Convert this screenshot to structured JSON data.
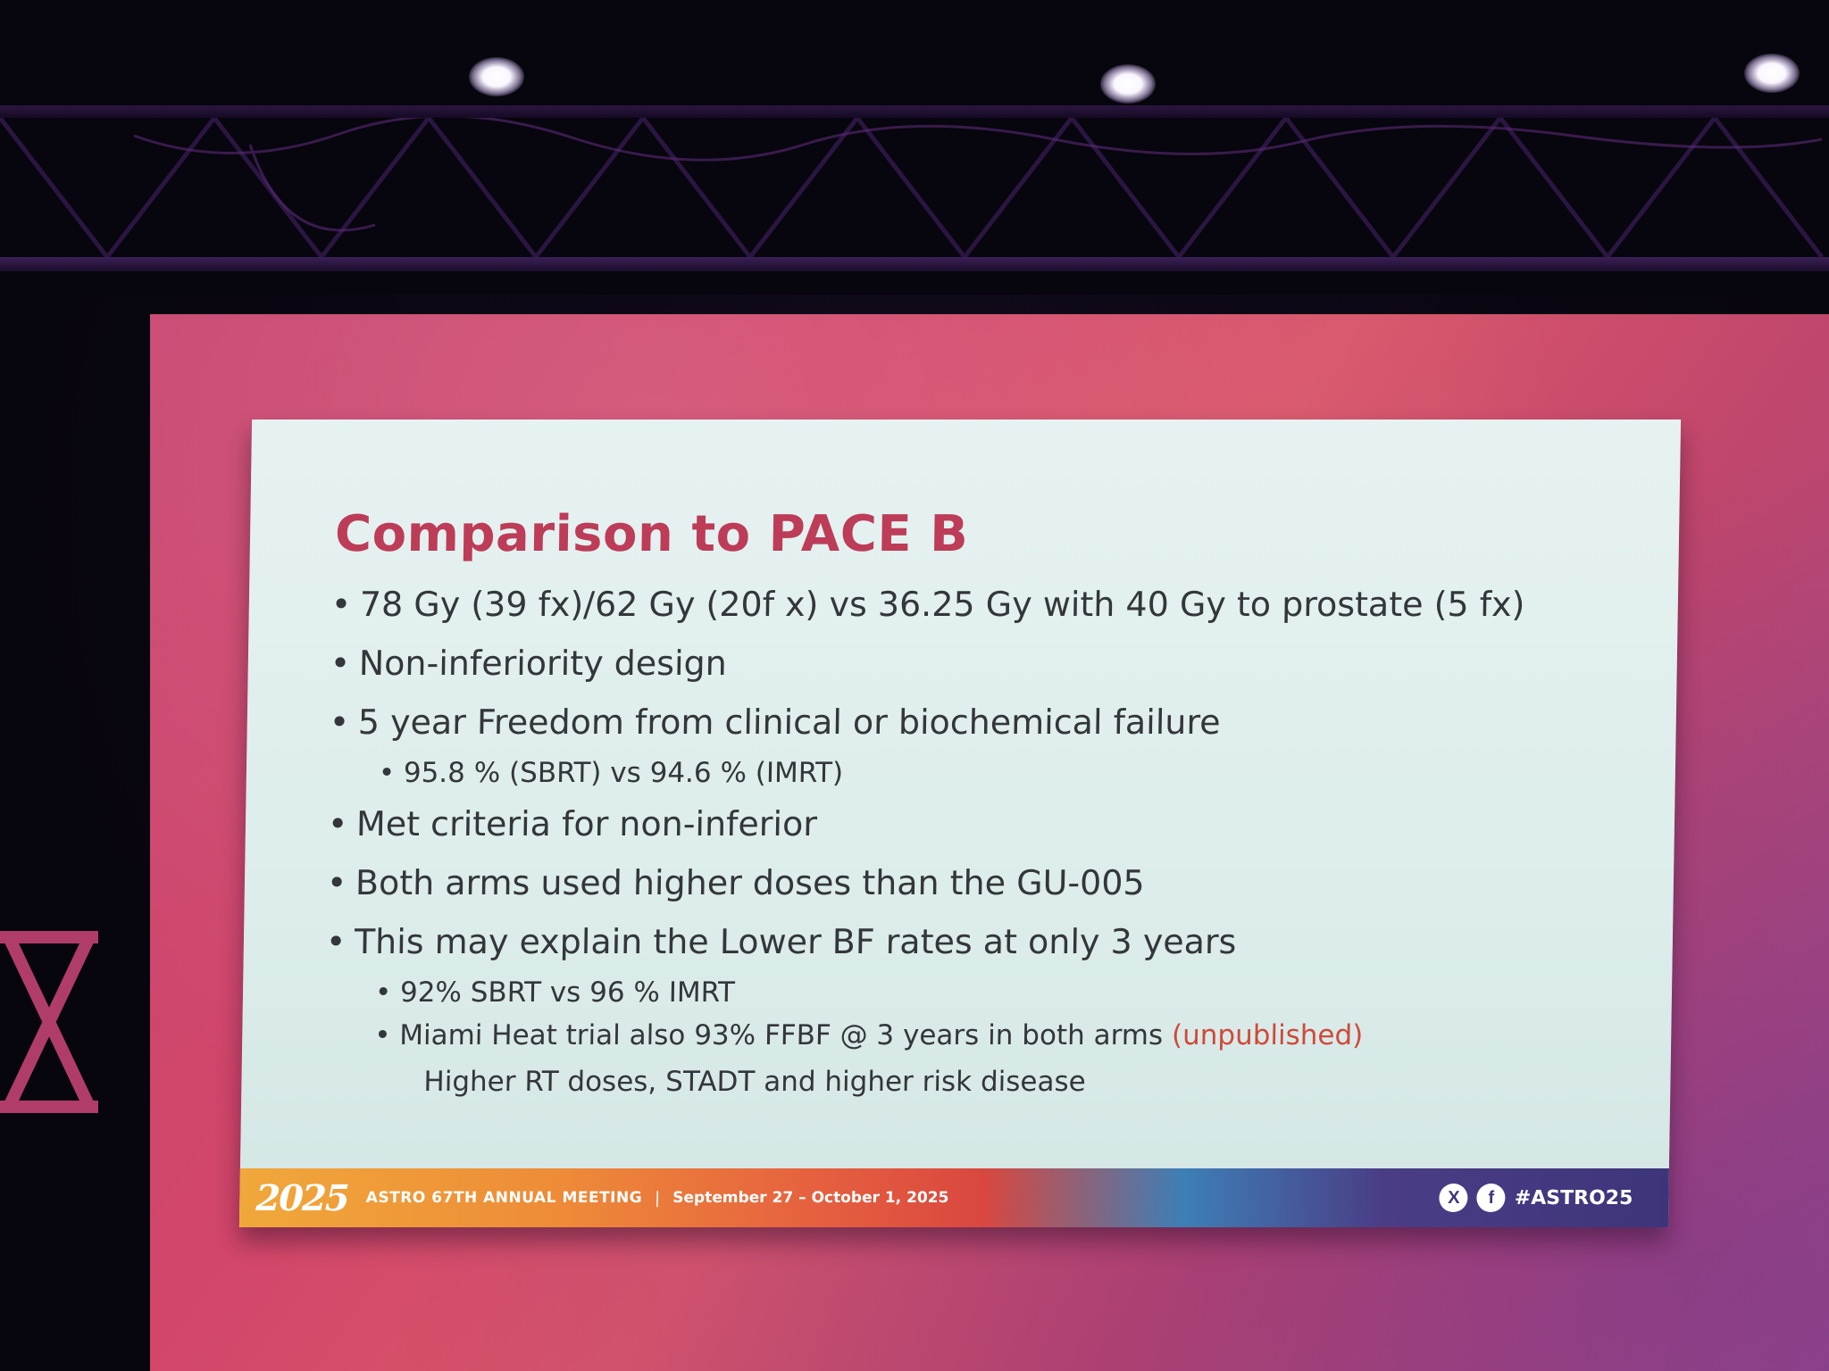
{
  "slide": {
    "title": "Comparison to PACE B",
    "bullets": [
      "78 Gy (39 fx)/62 Gy (20f x)  vs  36.25 Gy with 40 Gy to prostate (5 fx)",
      "Non-inferiority design",
      "5 year Freedom from clinical or biochemical failure",
      "Met criteria for non-inferior",
      "Both arms used higher doses than the GU-005",
      "This may explain the Lower BF rates at only 3 years"
    ],
    "sub_bullets": {
      "freedom_result": "95.8 % (SBRT)  vs 94.6 % (IMRT)",
      "lower_bf_1": "92% SBRT vs 96 % IMRT",
      "lower_bf_2_main": "Miami Heat trial also 93% FFBF @ 3 years in both arms",
      "lower_bf_2_note": "(unpublished)",
      "lower_bf_2_cont": "Higher RT doses, STADT and higher risk disease"
    },
    "colors": {
      "title": "#bd3c58",
      "accent": "#cf4a3a",
      "text": "#33363b"
    }
  },
  "footer": {
    "logo": "2025",
    "meeting": "ASTRO 67TH ANNUAL MEETING",
    "separator": "|",
    "dates": "September 27 – October 1, 2025",
    "social_icons": [
      "x-icon",
      "facebook-icon"
    ],
    "x_glyph": "X",
    "facebook_glyph": "f",
    "hashtag": "#ASTRO25"
  }
}
